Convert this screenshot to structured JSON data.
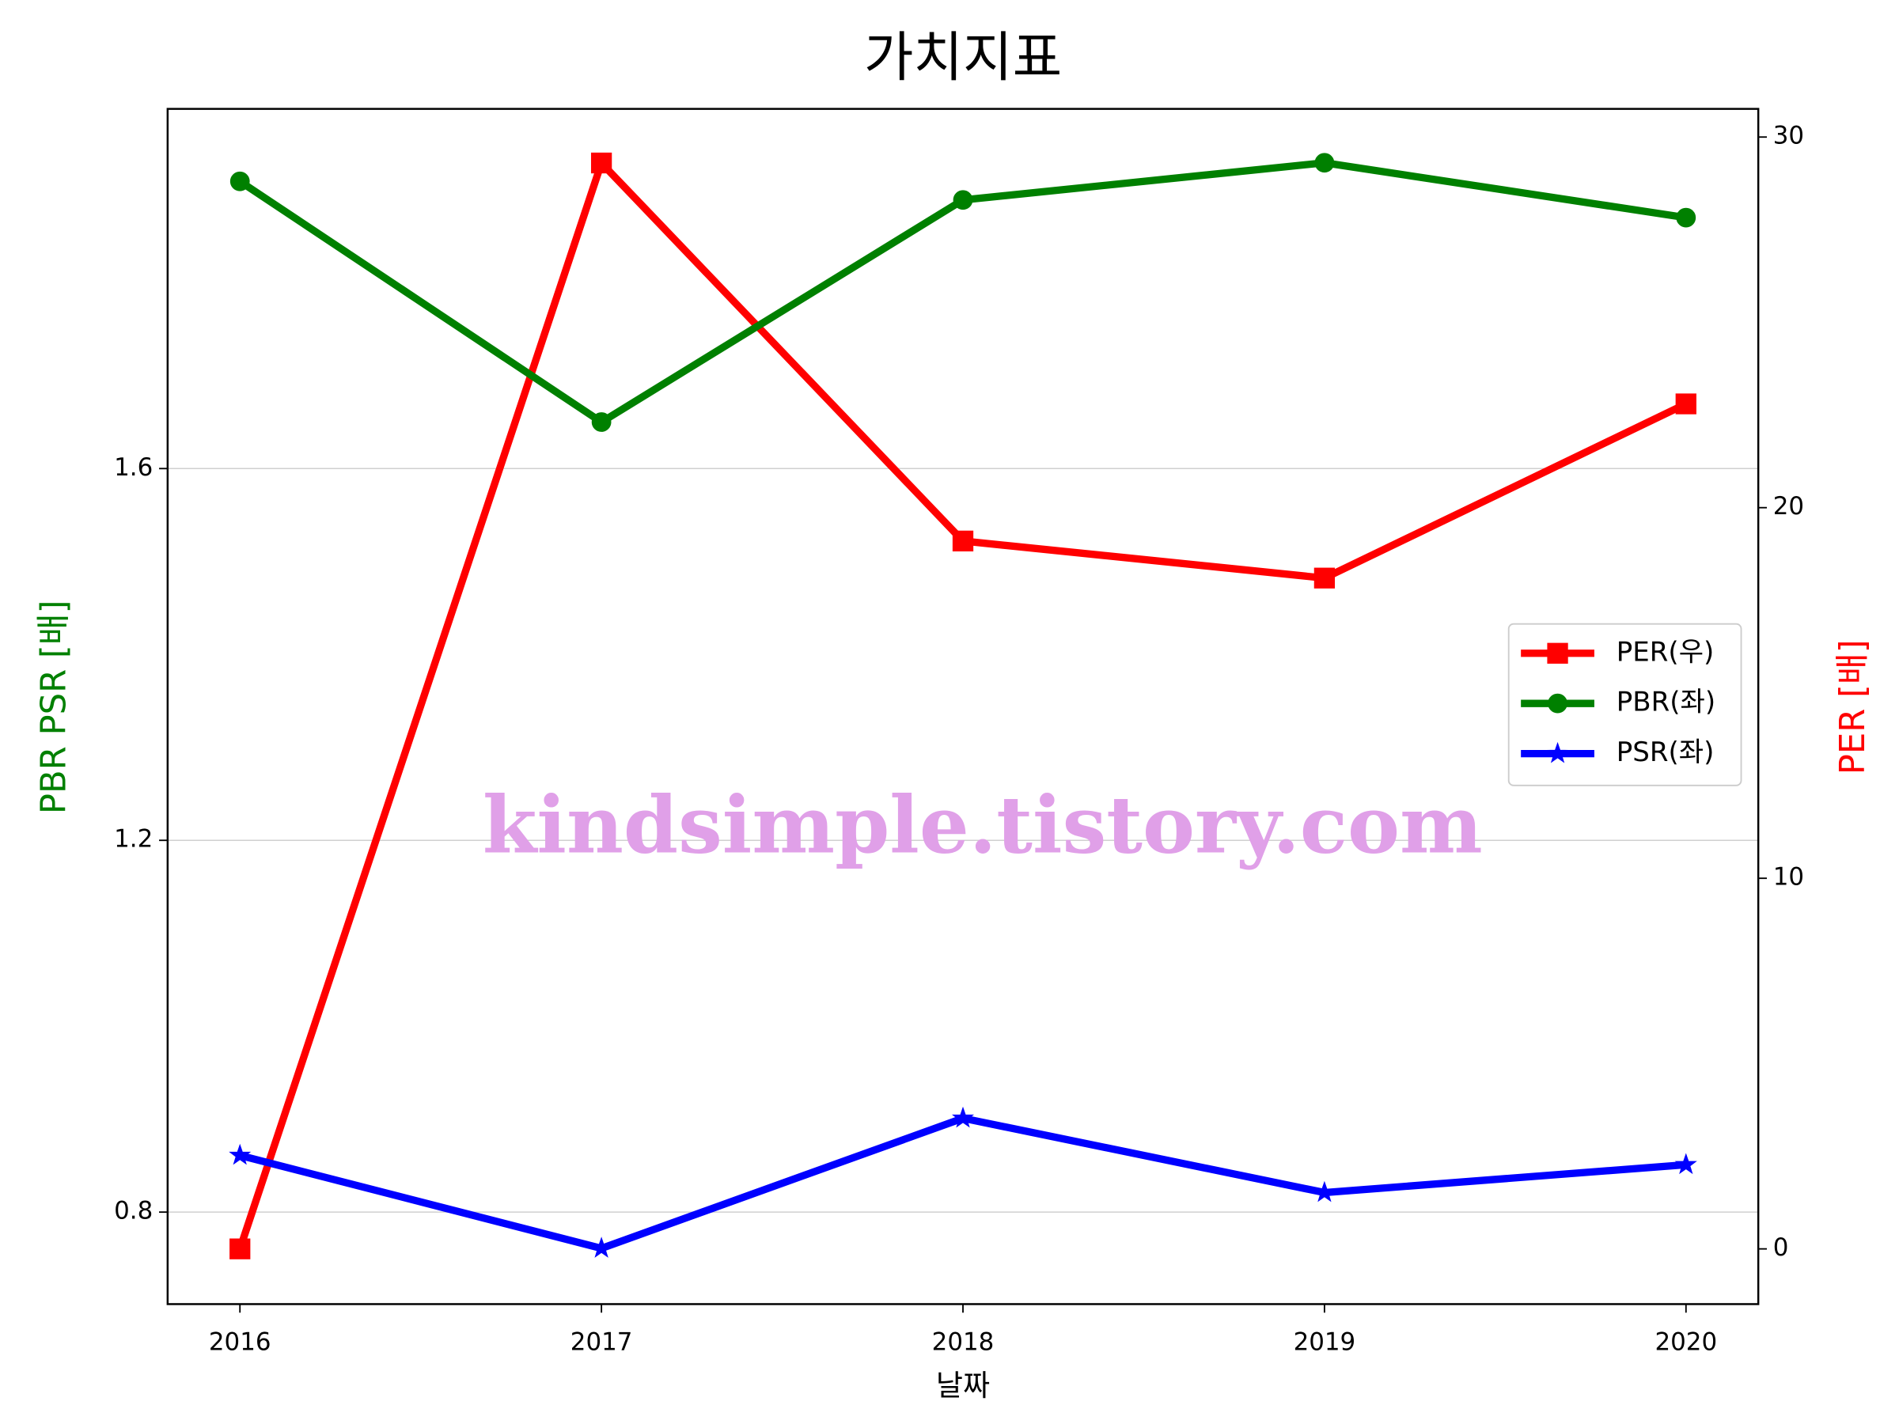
{
  "chart_data": {
    "type": "line",
    "title": "가치지표",
    "x_label": "날짜",
    "y_label": "PBR PSR [배]",
    "y2_label": "PER [배]",
    "y_label_color": "#008000",
    "y2_label_color": "#ff0000",
    "x": [
      2016,
      2017,
      2018,
      2019,
      2020
    ],
    "xlim": [
      2015.8,
      2020.2
    ],
    "xticks": [
      2016,
      2017,
      2018,
      2019,
      2020
    ],
    "ylim": [
      0.701,
      1.987
    ],
    "yticks": [
      0.8,
      1.2,
      1.6
    ],
    "y2lim": [
      -1.49,
      30.76
    ],
    "y2ticks": [
      0,
      10,
      20,
      30
    ],
    "grid": true,
    "legend": "center right",
    "series": [
      {
        "name": "PER(우)",
        "color": "#ff0000",
        "marker": "square",
        "axis": "y2",
        "values": [
          0,
          29.3,
          19.1,
          18.1,
          22.8
        ]
      },
      {
        "name": "PBR(좌)",
        "color": "#008000",
        "marker": "circle",
        "values": [
          1.909,
          1.65,
          1.889,
          1.929,
          1.87
        ]
      },
      {
        "name": "PSR(좌)",
        "color": "#0000ff",
        "marker": "star",
        "values": [
          0.861,
          0.761,
          0.901,
          0.821,
          0.851
        ]
      }
    ],
    "watermark": "kindsimple.tistory.com",
    "watermark_color": "#e0a0e8"
  }
}
